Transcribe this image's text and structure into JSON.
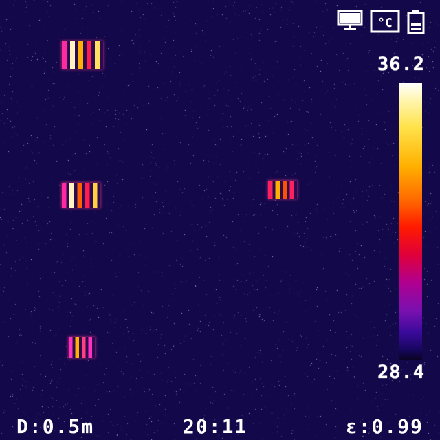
{
  "status_bar": {
    "icons": [
      "monitor-icon",
      "celsius-unit-icon",
      "battery-icon"
    ],
    "unit_label": "°C"
  },
  "color_scale": {
    "max_temp": "36.2",
    "min_temp": "28.4",
    "palette": "iron"
  },
  "hud": {
    "distance": "D:0.5m",
    "time": "20:11",
    "emissivity": "ε:0.99"
  },
  "hot_spots": [
    {
      "name": "hot-spot-1",
      "stripes": 5,
      "palette": [
        "#ff2aa0",
        "#fff4c0",
        "#ffb000",
        "#ff1a50",
        "#ffe060"
      ]
    },
    {
      "name": "hot-spot-2",
      "stripes": 5,
      "palette": [
        "#ff2aa0",
        "#fff4c0",
        "#ff6000",
        "#ff1a50",
        "#ffd040"
      ]
    },
    {
      "name": "hot-spot-3",
      "stripes": 4,
      "palette": [
        "#ff2060",
        "#ffb000",
        "#ff5000",
        "#ff2060"
      ]
    },
    {
      "name": "hot-spot-4",
      "stripes": 4,
      "palette": [
        "#ff30c0",
        "#ffb000",
        "#ff4080",
        "#ff30c0"
      ]
    }
  ],
  "colors": {
    "background": "#13084a",
    "text": "#ffffff"
  }
}
